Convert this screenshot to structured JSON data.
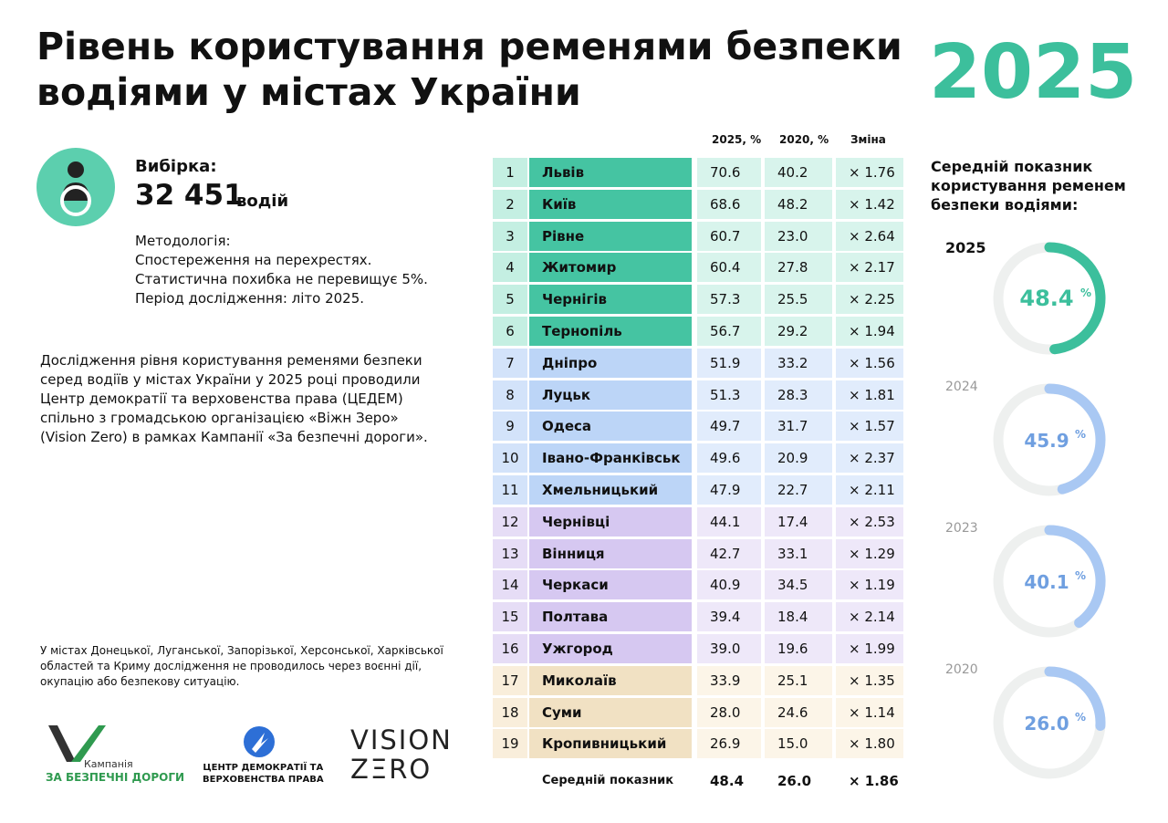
{
  "header": {
    "title": [
      "Рівень користування ременями безпеки",
      "водіями у містах України"
    ],
    "year": "2025"
  },
  "sample": {
    "label": "Вибірка:",
    "count": "32 451",
    "unit": "водій"
  },
  "methodology": [
    "Методологія:",
    "Спостереження на перехрестях.",
    "Статистична похибка не перевищує 5%.",
    "Період дослідження: літо 2025."
  ],
  "description": [
    "Дослідження рівня користування ременями безпеки",
    "серед водіїв у містах України у 2025 році проводили",
    "Центр демократії та верховенства права (ЦЕДЕМ)",
    "спільно з громадською організацією «Віжн Зеро»",
    "(Vision Zero) в рамках Кампанії «За безпечні дороги»."
  ],
  "footnote": [
    "У містах Донецької, Луганської, Запорізької, Херсонської, Харківської",
    "областей та Криму дослідження не проводилось через воєнні дії,",
    "окупацію або безпекову ситуацію."
  ],
  "logos": {
    "campaign_small": "Кампанія",
    "campaign": "ЗА БЕЗПЕЧНІ ДОРОГИ",
    "cedem": [
      "ЦЕНТР ДЕМОКРАТІЇ ТА",
      "ВЕРХОВЕНСТВА ПРАВА"
    ],
    "vision": [
      "VISION",
      "ZΞRO"
    ]
  },
  "table": {
    "headers": [
      "2025, %",
      "2020, %",
      "Зміна"
    ],
    "rows": [
      [
        1,
        "Львів",
        "70.6",
        "40.2",
        "× 1.76"
      ],
      [
        2,
        "Київ",
        "68.6",
        "48.2",
        "× 1.42"
      ],
      [
        3,
        "Рівне",
        "60.7",
        "23.0",
        "× 2.64"
      ],
      [
        4,
        "Житомир",
        "60.4",
        "27.8",
        "× 2.17"
      ],
      [
        5,
        "Чернігів",
        "57.3",
        "25.5",
        "× 2.25"
      ],
      [
        6,
        "Тернопіль",
        "56.7",
        "29.2",
        "× 1.94"
      ],
      [
        7,
        "Дніпро",
        "51.9",
        "33.2",
        "× 1.56"
      ],
      [
        8,
        "Луцьк",
        "51.3",
        "28.3",
        "× 1.81"
      ],
      [
        9,
        "Одеса",
        "49.7",
        "31.7",
        "× 1.57"
      ],
      [
        10,
        "Івано-Франківськ",
        "49.6",
        "20.9",
        "× 2.37"
      ],
      [
        11,
        "Хмельницький",
        "47.9",
        "22.7",
        "× 2.11"
      ],
      [
        12,
        "Чернівці",
        "44.1",
        "17.4",
        "× 2.53"
      ],
      [
        13,
        "Вінниця",
        "42.7",
        "33.1",
        "× 1.29"
      ],
      [
        14,
        "Черкаси",
        "40.9",
        "34.5",
        "× 1.19"
      ],
      [
        15,
        "Полтава",
        "39.4",
        "18.4",
        "× 2.14"
      ],
      [
        16,
        "Ужгород",
        "39.0",
        "19.6",
        "× 1.99"
      ],
      [
        17,
        "Миколаїв",
        "33.9",
        "25.1",
        "× 1.35"
      ],
      [
        18,
        "Суми",
        "28.0",
        "24.6",
        "× 1.14"
      ],
      [
        19,
        "Кропивницький",
        "26.9",
        "15.0",
        "× 1.80"
      ]
    ],
    "average": [
      "Середній показник",
      "48.4",
      "26.0",
      "× 1.86"
    ]
  },
  "gauges_title": [
    "Середній показник",
    "користування ременем",
    "безпеки водіями:"
  ],
  "gauges": [
    {
      "year": "2025",
      "value": 48.4,
      "value_label": "48.4",
      "unit": "%"
    },
    {
      "year": "2024",
      "value": 45.9,
      "value_label": "45.9",
      "unit": "%"
    },
    {
      "year": "2023",
      "value": 40.1,
      "value_label": "40.1",
      "unit": "%"
    },
    {
      "year": "2020",
      "value": 26.0,
      "value_label": "26.0",
      "unit": "%"
    }
  ]
}
